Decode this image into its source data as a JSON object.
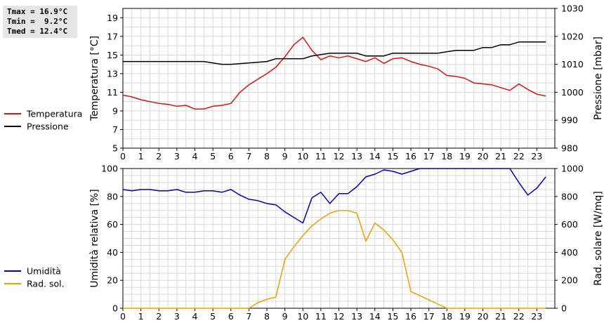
{
  "stats": {
    "tmax": "Tmax = 16.9°C",
    "tmin": "Tmin =  9.2°C",
    "tmed": "Tmed = 12.4°C"
  },
  "colors": {
    "temperature": "#dd1111",
    "pressure": "#000000",
    "humidity": "#0000bb",
    "radiation": "#eea000",
    "grid": "#d8d8d8"
  },
  "chart_data": [
    {
      "type": "line",
      "xlabel": "",
      "xlim": [
        0,
        24
      ],
      "x_ticks": [
        "0",
        "1",
        "2",
        "3",
        "4",
        "5",
        "6",
        "7",
        "8",
        "9",
        "10",
        "11",
        "12",
        "13",
        "14",
        "15",
        "16",
        "17",
        "18",
        "19",
        "20",
        "21",
        "22",
        "23"
      ],
      "grid": true,
      "legend_position": "left",
      "y_left": {
        "label": "Temperatura [°C]",
        "ylim": [
          5,
          20
        ],
        "ticks": [
          "5",
          "7",
          "9",
          "11",
          "13",
          "15",
          "17",
          "19"
        ]
      },
      "y_right": {
        "label": "Pressione [mbar]",
        "ylim": [
          980,
          1030
        ],
        "ticks": [
          "980",
          "990",
          "1000",
          "1010",
          "1020",
          "1030"
        ]
      },
      "series": [
        {
          "name": "Temperatura",
          "axis": "left",
          "x": [
            0,
            0.5,
            1,
            1.5,
            2,
            2.5,
            3,
            3.5,
            4,
            4.5,
            5,
            5.5,
            6,
            6.5,
            7,
            7.5,
            8,
            8.5,
            9,
            9.5,
            10,
            10.5,
            11,
            11.5,
            12,
            12.5,
            13,
            13.5,
            14,
            14.5,
            15,
            15.5,
            16,
            16.5,
            17,
            17.5,
            18,
            18.5,
            19,
            19.5,
            20,
            20.5,
            21,
            21.5,
            22,
            22.5,
            23,
            23.5
          ],
          "y": [
            10.7,
            10.5,
            10.2,
            10.0,
            9.8,
            9.7,
            9.5,
            9.6,
            9.2,
            9.2,
            9.5,
            9.6,
            9.8,
            11.0,
            11.8,
            12.4,
            13.0,
            13.7,
            14.8,
            16.1,
            16.9,
            15.5,
            14.5,
            14.9,
            14.7,
            14.9,
            14.6,
            14.3,
            14.7,
            14.1,
            14.6,
            14.7,
            14.3,
            14.0,
            13.8,
            13.5,
            12.8,
            12.7,
            12.5,
            12.0,
            11.9,
            11.8,
            11.5,
            11.2,
            11.9,
            11.3,
            10.8,
            10.6
          ]
        },
        {
          "name": "Pressione",
          "axis": "right",
          "x": [
            0,
            4.5,
            5.5,
            6,
            8,
            8.5,
            10,
            10.5,
            11.5,
            13,
            13.5,
            14.5,
            15,
            17,
            17.5,
            18.5,
            19,
            19.5,
            20,
            20.5,
            21,
            21.5,
            22,
            23.5
          ],
          "y": [
            1011,
            1011,
            1010,
            1010,
            1011,
            1012,
            1012,
            1013,
            1014,
            1014,
            1013,
            1013,
            1014,
            1014,
            1014,
            1015,
            1015,
            1015,
            1016,
            1016,
            1017,
            1017,
            1018,
            1018
          ]
        }
      ]
    },
    {
      "type": "line",
      "xlabel": "",
      "xlim": [
        0,
        24
      ],
      "x_ticks": [
        "0",
        "1",
        "2",
        "3",
        "4",
        "5",
        "6",
        "7",
        "8",
        "9",
        "10",
        "11",
        "12",
        "13",
        "14",
        "15",
        "16",
        "17",
        "18",
        "19",
        "20",
        "21",
        "22",
        "23"
      ],
      "grid": true,
      "legend_position": "left",
      "y_left": {
        "label": "Umidità relativa [%]",
        "ylim": [
          0,
          100
        ],
        "ticks": [
          "0",
          "20",
          "40",
          "60",
          "80",
          "100"
        ]
      },
      "y_right": {
        "label": "Rad. solare [W/mq]",
        "ylim": [
          0,
          1000
        ],
        "ticks": [
          "0",
          "200",
          "400",
          "600",
          "800",
          "1000"
        ]
      },
      "series": [
        {
          "name": "Umidità",
          "axis": "left",
          "x": [
            0,
            0.5,
            1,
            1.5,
            2,
            2.5,
            3,
            3.5,
            4,
            4.5,
            5,
            5.5,
            6,
            6.5,
            7,
            7.5,
            8,
            8.5,
            9,
            9.5,
            10,
            10.5,
            11,
            11.5,
            12,
            12.5,
            13,
            13.5,
            14,
            14.5,
            15,
            15.5,
            16,
            16.5,
            17,
            17.5,
            18,
            18.5,
            19,
            19.5,
            20,
            20.5,
            21,
            21.5,
            22,
            22.5,
            23,
            23.5
          ],
          "y": [
            85,
            84,
            85,
            85,
            84,
            84,
            85,
            83,
            83,
            84,
            84,
            83,
            85,
            81,
            78,
            77,
            75,
            74,
            69,
            65,
            61,
            79,
            83,
            75,
            82,
            82,
            87,
            94,
            96,
            99,
            98,
            96,
            98,
            100,
            100,
            100,
            100,
            100,
            100,
            100,
            100,
            100,
            100,
            100,
            90,
            81,
            86,
            94
          ]
        },
        {
          "name": "Rad. sol.",
          "axis": "right",
          "x": [
            0,
            1,
            2,
            3,
            4,
            5,
            6,
            7,
            7.5,
            8,
            8.5,
            9,
            9.5,
            10,
            10.5,
            11,
            11.5,
            12,
            12.5,
            13,
            13.5,
            14,
            14.5,
            15,
            15.5,
            16,
            16.5,
            17,
            17.5,
            18,
            18.5,
            19,
            20,
            21,
            22,
            23,
            23.5
          ],
          "y": [
            0,
            0,
            0,
            0,
            0,
            0,
            0,
            0,
            40,
            65,
            80,
            350,
            440,
            520,
            590,
            640,
            680,
            700,
            700,
            680,
            480,
            610,
            560,
            490,
            400,
            120,
            90,
            60,
            30,
            0,
            0,
            0,
            0,
            0,
            0,
            0,
            0
          ]
        }
      ]
    }
  ]
}
